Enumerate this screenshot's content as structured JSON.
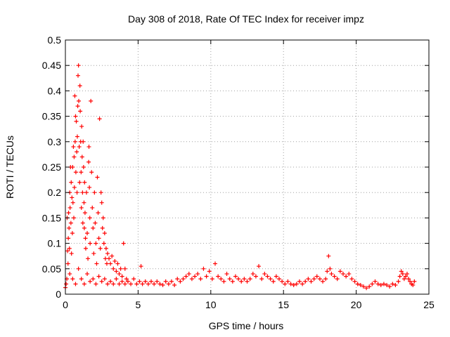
{
  "chart_data": {
    "type": "scatter",
    "title": "Day 308 of 2018, Rate Of TEC Index for receiver impz",
    "xlabel": "GPS time / hours",
    "ylabel": "ROTI / TECUs",
    "xlim": [
      0,
      25
    ],
    "ylim": [
      0,
      0.5
    ],
    "xticks": [
      0,
      5,
      10,
      15,
      20,
      25
    ],
    "yticks": [
      0,
      0.05,
      0.1,
      0.15,
      0.2,
      0.25,
      0.3,
      0.35,
      0.4,
      0.45,
      0.5
    ],
    "xtick_labels": [
      "0",
      "5",
      "10",
      "15",
      "20",
      "25"
    ],
    "ytick_labels": [
      "0",
      "0.05",
      "0.1",
      "0.15",
      "0.2",
      "0.25",
      "0.3",
      "0.35",
      "0.4",
      "0.45",
      "0.5"
    ],
    "grid": true,
    "marker": "plus",
    "color": "#ff0000",
    "series": [
      {
        "name": "ROTI",
        "points": [
          [
            0.0,
            0.013
          ],
          [
            0.05,
            0.02
          ],
          [
            0.1,
            0.03
          ],
          [
            0.12,
            0.15
          ],
          [
            0.15,
            0.085
          ],
          [
            0.18,
            0.06
          ],
          [
            0.2,
            0.11
          ],
          [
            0.22,
            0.16
          ],
          [
            0.25,
            0.13
          ],
          [
            0.28,
            0.09
          ],
          [
            0.3,
            0.2
          ],
          [
            0.32,
            0.17
          ],
          [
            0.35,
            0.25
          ],
          [
            0.38,
            0.14
          ],
          [
            0.4,
            0.22
          ],
          [
            0.42,
            0.08
          ],
          [
            0.45,
            0.19
          ],
          [
            0.48,
            0.12
          ],
          [
            0.5,
            0.25
          ],
          [
            0.52,
            0.18
          ],
          [
            0.55,
            0.29
          ],
          [
            0.58,
            0.15
          ],
          [
            0.6,
            0.27
          ],
          [
            0.62,
            0.21
          ],
          [
            0.65,
            0.39
          ],
          [
            0.67,
            0.3
          ],
          [
            0.7,
            0.35
          ],
          [
            0.72,
            0.24
          ],
          [
            0.75,
            0.34
          ],
          [
            0.78,
            0.28
          ],
          [
            0.8,
            0.2
          ],
          [
            0.82,
            0.31
          ],
          [
            0.85,
            0.37
          ],
          [
            0.87,
            0.43
          ],
          [
            0.9,
            0.45
          ],
          [
            0.92,
            0.38
          ],
          [
            0.95,
            0.29
          ],
          [
            0.98,
            0.22
          ],
          [
            1.0,
            0.41
          ],
          [
            1.02,
            0.36
          ],
          [
            1.05,
            0.3
          ],
          [
            1.08,
            0.24
          ],
          [
            1.1,
            0.17
          ],
          [
            1.12,
            0.33
          ],
          [
            1.15,
            0.27
          ],
          [
            1.18,
            0.2
          ],
          [
            1.2,
            0.14
          ],
          [
            1.22,
            0.3
          ],
          [
            1.25,
            0.25
          ],
          [
            1.28,
            0.18
          ],
          [
            1.3,
            0.13
          ],
          [
            1.32,
            0.22
          ],
          [
            1.35,
            0.16
          ],
          [
            1.38,
            0.11
          ],
          [
            1.4,
            0.09
          ],
          [
            1.45,
            0.2
          ],
          [
            1.5,
            0.12
          ],
          [
            1.55,
            0.07
          ],
          [
            1.6,
            0.26
          ],
          [
            1.62,
            0.29
          ],
          [
            1.65,
            0.21
          ],
          [
            1.68,
            0.15
          ],
          [
            1.7,
            0.1
          ],
          [
            1.75,
            0.38
          ],
          [
            1.8,
            0.24
          ],
          [
            1.85,
            0.17
          ],
          [
            1.9,
            0.13
          ],
          [
            1.95,
            0.08
          ],
          [
            2.0,
            0.2
          ],
          [
            2.05,
            0.14
          ],
          [
            2.1,
            0.1
          ],
          [
            2.15,
            0.06
          ],
          [
            2.2,
            0.23
          ],
          [
            2.25,
            0.16
          ],
          [
            2.3,
            0.11
          ],
          [
            2.35,
            0.345
          ],
          [
            2.4,
            0.09
          ],
          [
            2.45,
            0.2
          ],
          [
            2.5,
            0.18
          ],
          [
            2.55,
            0.13
          ],
          [
            2.6,
            0.15
          ],
          [
            2.65,
            0.1
          ],
          [
            2.7,
            0.12
          ],
          [
            2.75,
            0.07
          ],
          [
            2.8,
            0.09
          ],
          [
            2.85,
            0.06
          ],
          [
            2.9,
            0.08
          ],
          [
            3.0,
            0.07
          ],
          [
            3.1,
            0.06
          ],
          [
            3.2,
            0.075
          ],
          [
            3.3,
            0.05
          ],
          [
            3.4,
            0.065
          ],
          [
            3.5,
            0.045
          ],
          [
            3.6,
            0.06
          ],
          [
            3.7,
            0.04
          ],
          [
            3.8,
            0.05
          ],
          [
            3.9,
            0.035
          ],
          [
            4.0,
            0.1
          ],
          [
            4.1,
            0.05
          ],
          [
            4.2,
            0.03
          ],
          [
            0.3,
            0.04
          ],
          [
            0.5,
            0.03
          ],
          [
            0.7,
            0.02
          ],
          [
            0.9,
            0.05
          ],
          [
            1.1,
            0.03
          ],
          [
            1.3,
            0.02
          ],
          [
            1.5,
            0.04
          ],
          [
            1.7,
            0.025
          ],
          [
            1.9,
            0.03
          ],
          [
            2.1,
            0.02
          ],
          [
            2.3,
            0.035
          ],
          [
            2.5,
            0.025
          ],
          [
            2.7,
            0.03
          ],
          [
            2.9,
            0.02
          ],
          [
            3.1,
            0.025
          ],
          [
            3.3,
            0.02
          ],
          [
            3.5,
            0.03
          ],
          [
            3.7,
            0.02
          ],
          [
            3.9,
            0.025
          ],
          [
            4.1,
            0.02
          ],
          [
            4.3,
            0.025
          ],
          [
            4.5,
            0.02
          ],
          [
            4.7,
            0.03
          ],
          [
            4.9,
            0.02
          ],
          [
            5.1,
            0.025
          ],
          [
            5.2,
            0.055
          ],
          [
            5.3,
            0.02
          ],
          [
            5.5,
            0.025
          ],
          [
            5.7,
            0.02
          ],
          [
            5.9,
            0.025
          ],
          [
            6.1,
            0.02
          ],
          [
            6.3,
            0.025
          ],
          [
            6.5,
            0.02
          ],
          [
            6.7,
            0.018
          ],
          [
            6.9,
            0.025
          ],
          [
            7.1,
            0.02
          ],
          [
            7.3,
            0.025
          ],
          [
            7.5,
            0.018
          ],
          [
            7.7,
            0.03
          ],
          [
            7.9,
            0.025
          ],
          [
            8.1,
            0.03
          ],
          [
            8.3,
            0.035
          ],
          [
            8.5,
            0.04
          ],
          [
            8.7,
            0.03
          ],
          [
            8.9,
            0.035
          ],
          [
            9.1,
            0.04
          ],
          [
            9.3,
            0.03
          ],
          [
            9.5,
            0.05
          ],
          [
            9.7,
            0.035
          ],
          [
            9.9,
            0.045
          ],
          [
            10.1,
            0.03
          ],
          [
            10.3,
            0.06
          ],
          [
            10.5,
            0.035
          ],
          [
            10.7,
            0.03
          ],
          [
            10.9,
            0.025
          ],
          [
            11.1,
            0.04
          ],
          [
            11.3,
            0.03
          ],
          [
            11.5,
            0.025
          ],
          [
            11.7,
            0.035
          ],
          [
            11.9,
            0.03
          ],
          [
            12.1,
            0.025
          ],
          [
            12.3,
            0.03
          ],
          [
            12.5,
            0.025
          ],
          [
            12.7,
            0.03
          ],
          [
            12.9,
            0.04
          ],
          [
            13.1,
            0.035
          ],
          [
            13.3,
            0.055
          ],
          [
            13.5,
            0.03
          ],
          [
            13.7,
            0.04
          ],
          [
            13.9,
            0.035
          ],
          [
            14.1,
            0.03
          ],
          [
            14.3,
            0.025
          ],
          [
            14.5,
            0.035
          ],
          [
            14.7,
            0.03
          ],
          [
            14.9,
            0.025
          ],
          [
            15.1,
            0.02
          ],
          [
            15.3,
            0.025
          ],
          [
            15.5,
            0.02
          ],
          [
            15.7,
            0.018
          ],
          [
            15.9,
            0.02
          ],
          [
            16.1,
            0.025
          ],
          [
            16.3,
            0.02
          ],
          [
            16.5,
            0.025
          ],
          [
            16.7,
            0.03
          ],
          [
            16.9,
            0.025
          ],
          [
            17.1,
            0.03
          ],
          [
            17.3,
            0.035
          ],
          [
            17.5,
            0.03
          ],
          [
            17.7,
            0.025
          ],
          [
            17.9,
            0.03
          ],
          [
            18.0,
            0.045
          ],
          [
            18.1,
            0.075
          ],
          [
            18.2,
            0.05
          ],
          [
            18.3,
            0.04
          ],
          [
            18.5,
            0.035
          ],
          [
            18.7,
            0.03
          ],
          [
            18.9,
            0.045
          ],
          [
            19.1,
            0.04
          ],
          [
            19.3,
            0.035
          ],
          [
            19.5,
            0.04
          ],
          [
            19.7,
            0.03
          ],
          [
            19.9,
            0.025
          ],
          [
            20.1,
            0.02
          ],
          [
            20.3,
            0.018
          ],
          [
            20.5,
            0.015
          ],
          [
            20.7,
            0.012
          ],
          [
            20.9,
            0.015
          ],
          [
            21.1,
            0.02
          ],
          [
            21.3,
            0.025
          ],
          [
            21.5,
            0.02
          ],
          [
            21.7,
            0.018
          ],
          [
            21.9,
            0.02
          ],
          [
            22.1,
            0.018
          ],
          [
            22.3,
            0.015
          ],
          [
            22.5,
            0.02
          ],
          [
            22.7,
            0.018
          ],
          [
            22.9,
            0.025
          ],
          [
            23.0,
            0.035
          ],
          [
            23.1,
            0.045
          ],
          [
            23.2,
            0.04
          ],
          [
            23.3,
            0.03
          ],
          [
            23.4,
            0.035
          ],
          [
            23.5,
            0.04
          ],
          [
            23.6,
            0.03
          ],
          [
            23.7,
            0.025
          ],
          [
            23.8,
            0.02
          ],
          [
            23.9,
            0.018
          ],
          [
            24.0,
            0.025
          ]
        ]
      }
    ]
  }
}
